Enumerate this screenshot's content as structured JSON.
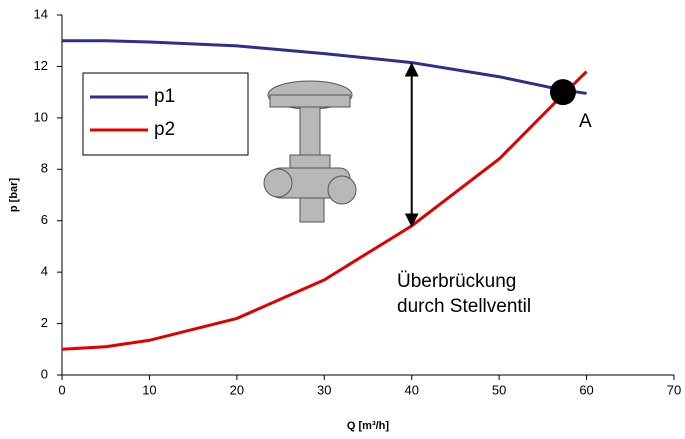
{
  "chart_data": {
    "type": "line",
    "x_label": "Q [m³/h]",
    "y_label": "p [bar]",
    "x": [
      0,
      5,
      10,
      20,
      30,
      40,
      50,
      57,
      60
    ],
    "series": [
      {
        "name": "p1",
        "color": "#2e2e8c",
        "values": [
          13,
          13,
          12.95,
          12.8,
          12.5,
          12.15,
          11.6,
          11.1,
          10.95
        ]
      },
      {
        "name": "p2",
        "color": "#e00000",
        "values": [
          1,
          1.1,
          1.35,
          2.2,
          3.7,
          5.8,
          8.4,
          10.8,
          11.8
        ]
      }
    ],
    "xlim": [
      0,
      70
    ],
    "xticks": [
      0,
      10,
      20,
      30,
      40,
      50,
      60,
      70
    ],
    "ylim": [
      0,
      14
    ],
    "yticks": [
      0,
      2,
      4,
      6,
      8,
      10,
      12,
      14
    ],
    "grid": false,
    "legend": "upper-left",
    "point": {
      "label": "A",
      "x": 57.3,
      "y": 11
    },
    "arrow": {
      "x": 40,
      "from": 12.1,
      "to": 5.8
    },
    "annotation": [
      "Überbrückung",
      "durch Stellventil"
    ]
  }
}
